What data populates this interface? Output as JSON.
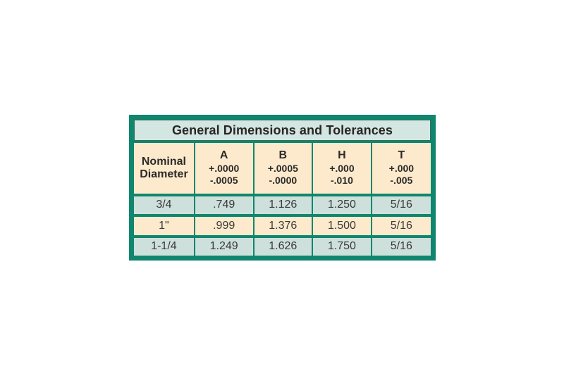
{
  "page": {
    "background_color": "#ffffff"
  },
  "table": {
    "title": "General Dimensions and Tolerances",
    "colors": {
      "frame": "#10866e",
      "title_bg": "#d4e6e1",
      "header_bg": "#fdeacd",
      "row_teal_bg": "#cde0dc",
      "row_peach_bg": "#fdeacd",
      "text": "#2b2a28"
    },
    "header": {
      "diameter_label_line1": "Nominal",
      "diameter_label_line2": "Diameter",
      "columns": [
        {
          "letter": "A",
          "plus": "+.0000",
          "minus": "-.0005"
        },
        {
          "letter": "B",
          "plus": "+.0005",
          "minus": "-.0000"
        },
        {
          "letter": "H",
          "plus": "+.000",
          "minus": "-.010"
        },
        {
          "letter": "T",
          "plus": "+.000",
          "minus": "-.005"
        }
      ]
    },
    "rows": [
      {
        "diameter": "3/4",
        "a": ".749",
        "b": "1.126",
        "h": "1.250",
        "t": "5/16"
      },
      {
        "diameter": "1\"",
        "a": ".999",
        "b": "1.376",
        "h": "1.500",
        "t": "5/16"
      },
      {
        "diameter": "1-1/4",
        "a": "1.249",
        "b": "1.626",
        "h": "1.750",
        "t": "5/16"
      }
    ]
  }
}
